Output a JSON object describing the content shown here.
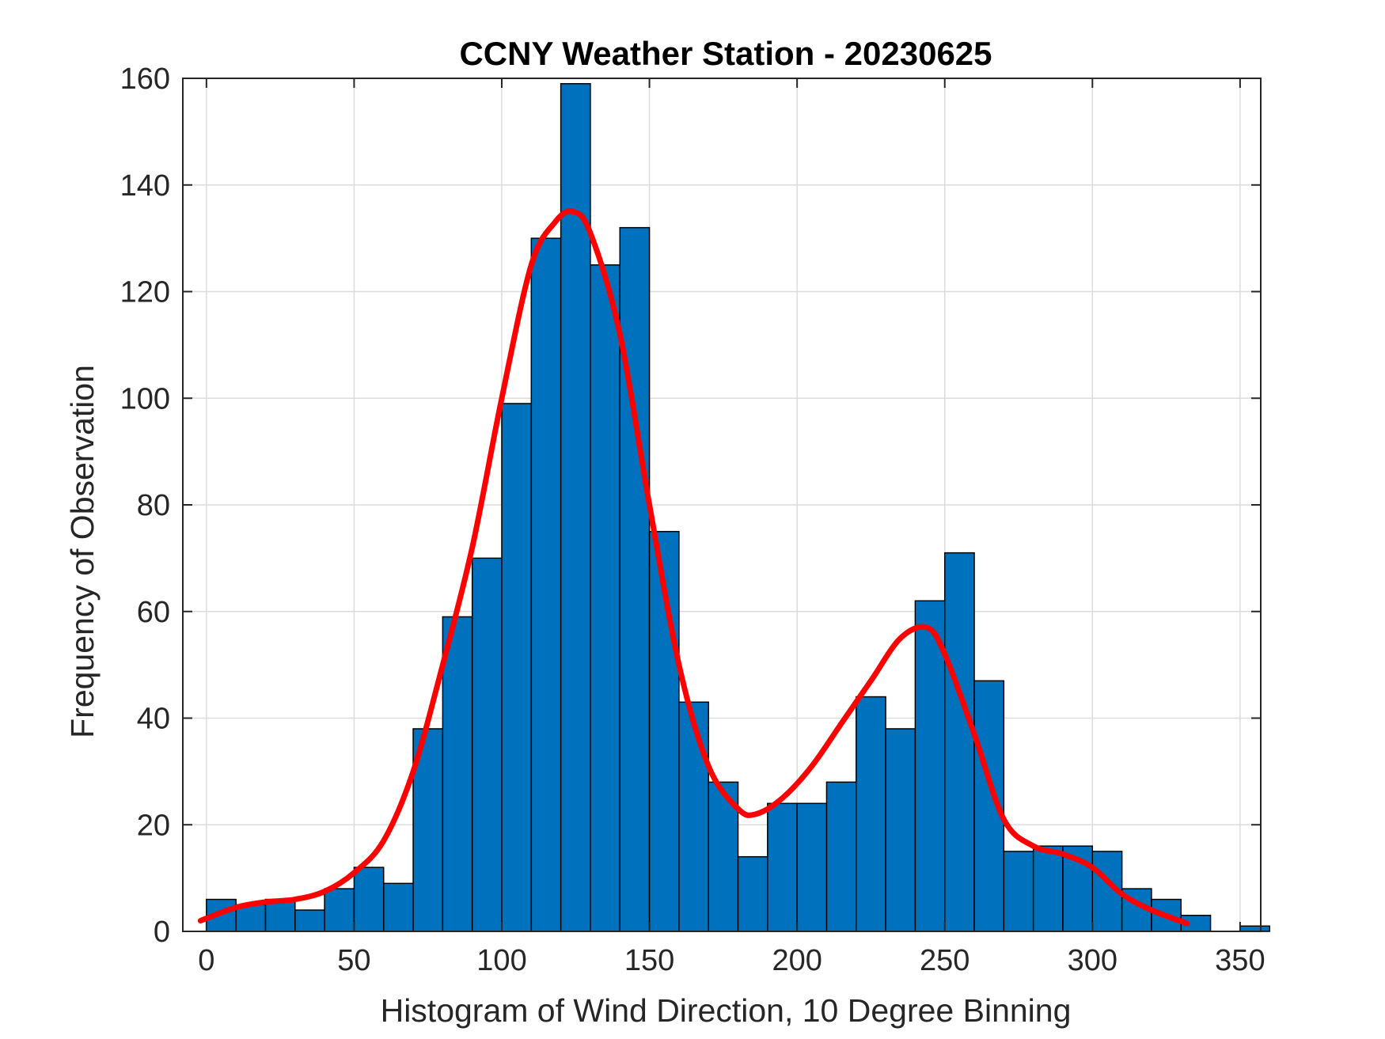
{
  "chart_data": {
    "type": "bar",
    "title": "CCNY Weather Station - 20230625",
    "xlabel": "Histogram of Wind Direction, 10 Degree Binning",
    "ylabel": "Frequency of Observation",
    "xlim": [
      -8,
      357
    ],
    "ylim": [
      0,
      160
    ],
    "xticks": [
      0,
      50,
      100,
      150,
      200,
      250,
      300,
      350
    ],
    "yticks": [
      0,
      20,
      40,
      60,
      80,
      100,
      120,
      140,
      160
    ],
    "grid": true,
    "bin_width": 10,
    "bins": [
      {
        "x": 0,
        "value": 6
      },
      {
        "x": 10,
        "value": 5
      },
      {
        "x": 20,
        "value": 6
      },
      {
        "x": 30,
        "value": 4
      },
      {
        "x": 40,
        "value": 8
      },
      {
        "x": 50,
        "value": 12
      },
      {
        "x": 60,
        "value": 9
      },
      {
        "x": 70,
        "value": 38
      },
      {
        "x": 80,
        "value": 59
      },
      {
        "x": 90,
        "value": 70
      },
      {
        "x": 100,
        "value": 99
      },
      {
        "x": 110,
        "value": 130
      },
      {
        "x": 120,
        "value": 159
      },
      {
        "x": 130,
        "value": 125
      },
      {
        "x": 140,
        "value": 132
      },
      {
        "x": 150,
        "value": 75
      },
      {
        "x": 160,
        "value": 43
      },
      {
        "x": 170,
        "value": 28
      },
      {
        "x": 180,
        "value": 14
      },
      {
        "x": 190,
        "value": 24
      },
      {
        "x": 200,
        "value": 24
      },
      {
        "x": 210,
        "value": 28
      },
      {
        "x": 220,
        "value": 44
      },
      {
        "x": 230,
        "value": 38
      },
      {
        "x": 240,
        "value": 62
      },
      {
        "x": 250,
        "value": 71
      },
      {
        "x": 260,
        "value": 47
      },
      {
        "x": 270,
        "value": 15
      },
      {
        "x": 280,
        "value": 16
      },
      {
        "x": 290,
        "value": 16
      },
      {
        "x": 300,
        "value": 15
      },
      {
        "x": 310,
        "value": 8
      },
      {
        "x": 320,
        "value": 6
      },
      {
        "x": 330,
        "value": 3
      },
      {
        "x": 340,
        "value": 0
      },
      {
        "x": 350,
        "value": 1
      }
    ],
    "bar_color": "#0072BD",
    "bar_edge_color": "#000000",
    "fit_curve": {
      "color": "#FF0000",
      "x": [
        -2,
        10,
        20,
        30,
        40,
        50,
        60,
        70,
        80,
        90,
        100,
        110,
        118,
        124,
        130,
        140,
        150,
        160,
        170,
        180,
        186,
        195,
        205,
        215,
        225,
        235,
        244,
        250,
        260,
        270,
        280,
        290,
        300,
        310,
        320,
        332
      ],
      "y": [
        2,
        4.5,
        5.5,
        6,
        7.5,
        11,
        17,
        30,
        50,
        72,
        100,
        125,
        133,
        135,
        131,
        112,
        80,
        50,
        31,
        23,
        22,
        25,
        31,
        39,
        47,
        55,
        57,
        52,
        37,
        21,
        16,
        14.5,
        12,
        7,
        4,
        1.5
      ]
    }
  }
}
